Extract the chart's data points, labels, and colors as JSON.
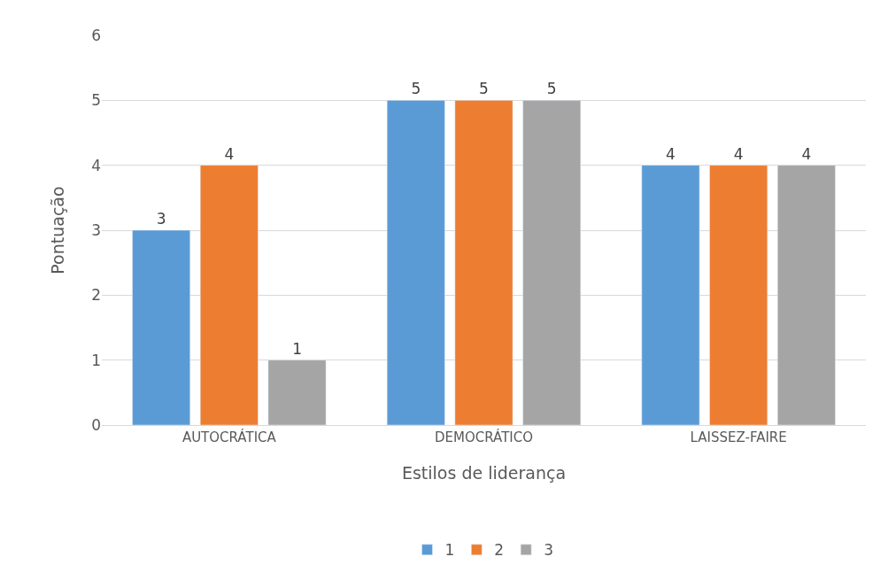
{
  "chart_data": {
    "type": "bar",
    "xlabel": "Estilos de liderança",
    "ylabel": "Pontuação",
    "categories": [
      "AUTOCRÁTICA",
      "DEMOCRÁTICO",
      "LAISSEZ-FAIRE"
    ],
    "series": [
      {
        "name": "1",
        "color": "#5b9bd5",
        "values": [
          3,
          5,
          4
        ]
      },
      {
        "name": "2",
        "color": "#ed7d31",
        "values": [
          4,
          5,
          4
        ]
      },
      {
        "name": "3",
        "color": "#a5a5a5",
        "values": [
          1,
          5,
          4
        ]
      }
    ],
    "ylim": [
      0,
      6
    ],
    "yticks": [
      0,
      1,
      2,
      3,
      4,
      5,
      6
    ],
    "grid": "y",
    "legend": "bottom",
    "data_labels": true
  }
}
